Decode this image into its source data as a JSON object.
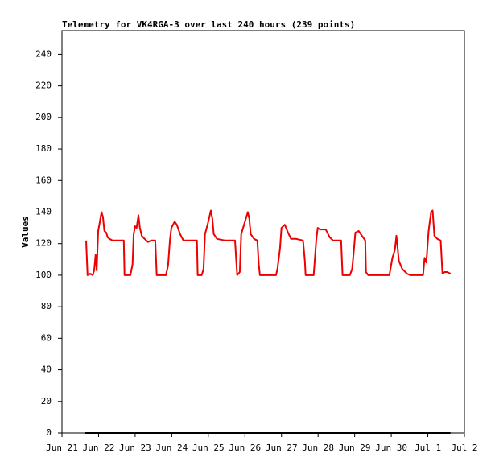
{
  "chart_data": {
    "type": "line",
    "title": "Telemetry for VK4RGA-3 over last 240 hours (239 points)",
    "ylabel": "Values",
    "xlim": [
      0,
      11
    ],
    "xticks": [
      {
        "value": 0,
        "label": "Jun 21"
      },
      {
        "value": 1,
        "label": "Jun 22"
      },
      {
        "value": 2,
        "label": "Jun 23"
      },
      {
        "value": 3,
        "label": "Jun 24"
      },
      {
        "value": 4,
        "label": "Jun 25"
      },
      {
        "value": 5,
        "label": "Jun 26"
      },
      {
        "value": 6,
        "label": "Jun 27"
      },
      {
        "value": 7,
        "label": "Jun 28"
      },
      {
        "value": 8,
        "label": "Jun 29"
      },
      {
        "value": 9,
        "label": "Jun 30"
      },
      {
        "value": 10,
        "label": "Jul 1"
      },
      {
        "value": 11,
        "label": "Jul 2"
      }
    ],
    "ylim": [
      0,
      255
    ],
    "yticks": [
      0,
      20,
      40,
      60,
      80,
      100,
      120,
      140,
      160,
      180,
      200,
      220,
      240
    ],
    "grid": false,
    "series": [
      {
        "color": "#ee0000",
        "x": [
          0.66,
          0.7,
          0.77,
          0.84,
          0.88,
          0.92,
          0.95,
          0.99,
          1.03,
          1.08,
          1.12,
          1.16,
          1.21,
          1.25,
          1.3,
          1.38,
          1.69,
          1.71,
          1.87,
          1.93,
          1.96,
          2.0,
          2.04,
          2.09,
          2.13,
          2.18,
          2.26,
          2.35,
          2.44,
          2.55,
          2.59,
          2.84,
          2.9,
          2.95,
          2.99,
          3.08,
          3.14,
          3.23,
          3.32,
          3.58,
          3.69,
          3.71,
          3.82,
          3.87,
          3.91,
          3.98,
          4.07,
          4.11,
          4.15,
          4.24,
          4.46,
          4.73,
          4.77,
          4.79,
          4.86,
          4.9,
          4.99,
          5.08,
          5.12,
          5.16,
          5.25,
          5.34,
          5.38,
          5.41,
          5.85,
          5.89,
          5.96,
          6.0,
          6.09,
          6.18,
          6.26,
          6.4,
          6.59,
          6.64,
          6.66,
          6.88,
          6.95,
          6.99,
          7.05,
          7.21,
          7.32,
          7.41,
          7.63,
          7.67,
          7.87,
          7.93,
          7.98,
          8.02,
          8.11,
          8.2,
          8.29,
          8.31,
          8.37,
          8.95,
          9.03,
          9.1,
          9.14,
          9.21,
          9.3,
          9.43,
          9.52,
          9.87,
          9.91,
          9.96,
          10.02,
          10.09,
          10.13,
          10.18,
          10.26,
          10.35,
          10.4,
          10.46,
          10.53,
          10.62
        ],
        "values": [
          122,
          100,
          101,
          100,
          103,
          113,
          103,
          128,
          133,
          140,
          137,
          128,
          127,
          124,
          123,
          122,
          122,
          100,
          100,
          107,
          126,
          131,
          130,
          138,
          130,
          125,
          123,
          121,
          122,
          122,
          100,
          100,
          106,
          122,
          130,
          134,
          132,
          126,
          122,
          122,
          122,
          100,
          100,
          104,
          126,
          132,
          141,
          136,
          126,
          123,
          122,
          122,
          107,
          100,
          102,
          126,
          133,
          140,
          136,
          126,
          123,
          122,
          107,
          100,
          100,
          104,
          117,
          130,
          132,
          127,
          123,
          123,
          122,
          109,
          100,
          100,
          122,
          130,
          129,
          129,
          124,
          122,
          122,
          100,
          100,
          104,
          116,
          127,
          128,
          125,
          122,
          102,
          100,
          100,
          111,
          116,
          125,
          109,
          104,
          101,
          100,
          100,
          111,
          108,
          128,
          140,
          141,
          125,
          123,
          122,
          101,
          102,
          102,
          101
        ]
      },
      {
        "color": "#000000",
        "x": [
          0.62,
          10.62
        ],
        "values": [
          0,
          0
        ]
      }
    ]
  }
}
